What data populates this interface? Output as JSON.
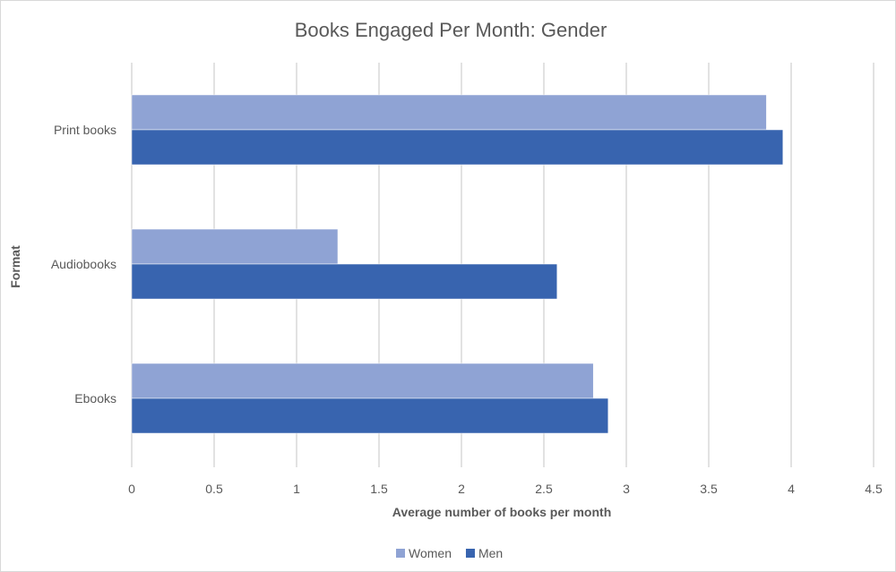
{
  "chart_data": {
    "type": "bar",
    "orientation": "horizontal",
    "title": "Books Engaged Per Month: Gender",
    "xlabel": "Average number of books per month",
    "ylabel": "Format",
    "categories": [
      "Print books",
      "Audiobooks",
      "Ebooks"
    ],
    "series": [
      {
        "name": "Women",
        "values": [
          3.85,
          1.25,
          2.8
        ],
        "color": "#8FA3D4"
      },
      {
        "name": "Men",
        "values": [
          3.95,
          2.58,
          2.89
        ],
        "color": "#3864AF"
      }
    ],
    "xlim": [
      0,
      4.5
    ],
    "xticks": [
      "0",
      "0.5",
      "1",
      "1.5",
      "2",
      "2.5",
      "3",
      "3.5",
      "4",
      "4.5"
    ],
    "grid": true,
    "legend": "bottom"
  }
}
